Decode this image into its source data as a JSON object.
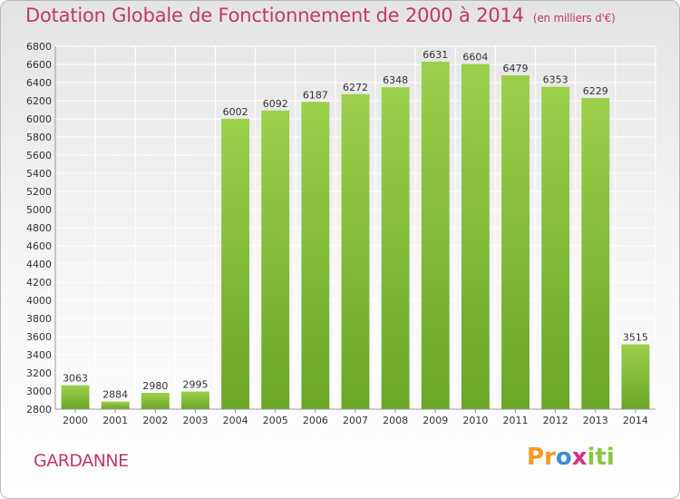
{
  "chart_data": {
    "type": "bar",
    "title": "Dotation Globale de Fonctionnement de 2000 à 2014",
    "subtitle": "(en milliers d'€)",
    "categories": [
      "2000",
      "2001",
      "2002",
      "2003",
      "2004",
      "2005",
      "2006",
      "2007",
      "2008",
      "2009",
      "2010",
      "2011",
      "2012",
      "2013",
      "2014"
    ],
    "values": [
      3063,
      2884,
      2980,
      2995,
      6002,
      6092,
      6187,
      6272,
      6348,
      6631,
      6604,
      6479,
      6353,
      6229,
      3515
    ],
    "ylim": [
      2800,
      6800
    ],
    "ytick_step": 200,
    "grid": true,
    "bar_color": "#8cc63f"
  },
  "footer": {
    "commune": "GARDANNE",
    "brand_letters": [
      "P",
      "r",
      "o",
      "x",
      "i",
      "t",
      "i"
    ],
    "brand_colors": [
      "#f39a1f",
      "#f39a1f",
      "#3c8fd6",
      "#d4328a",
      "#8cc63f",
      "#8cc63f",
      "#8cc63f"
    ]
  }
}
